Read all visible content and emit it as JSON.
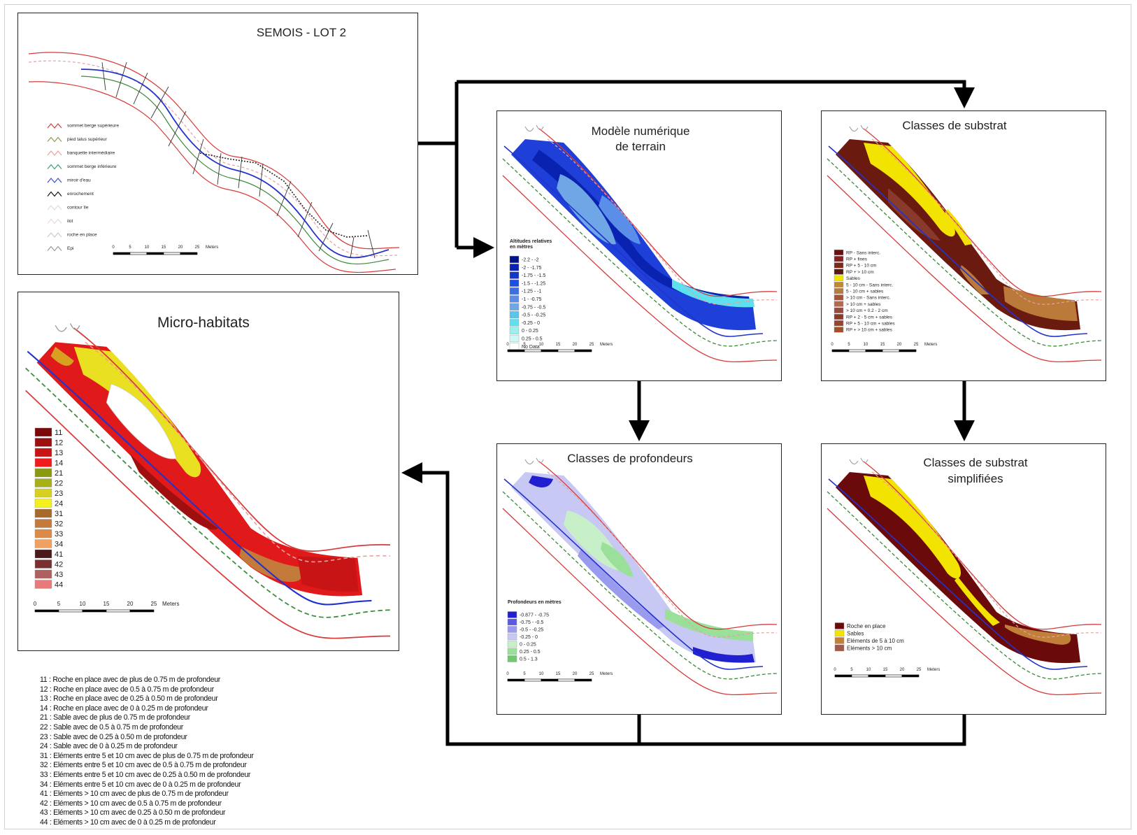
{
  "panels": {
    "lot": {
      "title": "SEMOIS - LOT 2",
      "legend": [
        {
          "label": "sommet berge supérieure",
          "color": "#d83a3a"
        },
        {
          "label": "pied talus supérieur",
          "color": "#8a9a4a"
        },
        {
          "label": "banquette intermédiaire",
          "color": "#e9a0a0"
        },
        {
          "label": "sommet berge inférieure",
          "color": "#3aa06a"
        },
        {
          "label": "miroir d'eau",
          "color": "#3b4fd0"
        },
        {
          "label": "enrochement",
          "color": "#111111"
        },
        {
          "label": "contour île",
          "color": "#dddddd"
        },
        {
          "label": "ilot",
          "color": "#e8d8e8"
        },
        {
          "label": "roche en place",
          "color": "#ffffff"
        },
        {
          "label": "Epi",
          "color": "#9a9a9a"
        }
      ],
      "scale": [
        "0",
        "5",
        "10",
        "15",
        "20",
        "25",
        "Meters"
      ]
    },
    "terrain": {
      "title": [
        "Modèle numérique",
        "de terrain"
      ],
      "legend_title": [
        "Altitudes relatives",
        "en mètres"
      ],
      "legend": [
        {
          "label": "-2.2 - -2",
          "color": "#00128a"
        },
        {
          "label": "-2 - -1.75",
          "color": "#0a22b0"
        },
        {
          "label": "-1.75 - -1.5",
          "color": "#1435cc"
        },
        {
          "label": "-1.5 - -1.25",
          "color": "#1f4fe0"
        },
        {
          "label": "-1.25 - -1",
          "color": "#3a6fe8"
        },
        {
          "label": "-1 - -0.75",
          "color": "#5a8ee8"
        },
        {
          "label": "-0.75 - -0.5",
          "color": "#6fa6e6"
        },
        {
          "label": "-0.5 - -0.25",
          "color": "#56c6ee"
        },
        {
          "label": "-0.25 - 0",
          "color": "#5ee0ee"
        },
        {
          "label": "0 - 0.25",
          "color": "#9af0f0"
        },
        {
          "label": "0.25 - 0.5",
          "color": "#cff8f4"
        },
        {
          "label": "No Data",
          "color": "#ffffff"
        }
      ],
      "scale": [
        "0",
        "5",
        "10",
        "15",
        "20",
        "25",
        "Meters"
      ]
    },
    "substrat": {
      "title": "Classes de substrat",
      "legend": [
        {
          "label": "RP - Sans interc.",
          "color": "#6b0f0f"
        },
        {
          "label": "RP + fines",
          "color": "#8a1f1f"
        },
        {
          "label": "RP + 5 - 10 cm",
          "color": "#7a2a1a"
        },
        {
          "label": "RP + > 10 cm",
          "color": "#5a1a10"
        },
        {
          "label": "Sables",
          "color": "#f2e400"
        },
        {
          "label": "5 - 10 cm - Sans interc.",
          "color": "#c8862a"
        },
        {
          "label": "5 - 10 cm + sables",
          "color": "#b97a3a"
        },
        {
          "label": "> 10 cm - Sans interc.",
          "color": "#a5543a"
        },
        {
          "label": "> 10 cm + sables",
          "color": "#b5694a"
        },
        {
          "label": "> 10 cm + 0.2 - 2 cm",
          "color": "#9a4a3a"
        },
        {
          "label": "RP + 2 - 5 cm + sables",
          "color": "#8a3a2a"
        },
        {
          "label": "RP + 5 - 10 cm + sables",
          "color": "#96452a"
        },
        {
          "label": "RP + > 10 cm + sables",
          "color": "#a0502a"
        }
      ],
      "scale": [
        "0",
        "5",
        "10",
        "15",
        "20",
        "25",
        "Meters"
      ]
    },
    "profondeurs": {
      "title": "Classes de profondeurs",
      "legend_title": "Profondeurs en mètres",
      "legend": [
        {
          "label": "-0.877 - -0.75",
          "color": "#2020d0"
        },
        {
          "label": "-0.75 - -0.5",
          "color": "#5a5ae0"
        },
        {
          "label": "-0.5 - -0.25",
          "color": "#9a9aee"
        },
        {
          "label": "-0.25 - 0",
          "color": "#c8c8f4"
        },
        {
          "label": "0 - 0.25",
          "color": "#c8f0c8"
        },
        {
          "label": "0.25 - 0.5",
          "color": "#9ae09a"
        },
        {
          "label": "0.5 - 1.3",
          "color": "#70c870"
        }
      ],
      "scale": [
        "0",
        "5",
        "10",
        "15",
        "20",
        "25",
        "Meters"
      ]
    },
    "simplifiees": {
      "title": [
        "Classes de substrat",
        "simplifiées"
      ],
      "legend": [
        {
          "label": "Roche en place",
          "color": "#6b0a0a"
        },
        {
          "label": "Sables",
          "color": "#f2e400"
        },
        {
          "label": "Eléments de 5 à 10 cm",
          "color": "#c0803a"
        },
        {
          "label": "Eléments > 10 cm",
          "color": "#a05a4a"
        }
      ],
      "scale": [
        "0",
        "5",
        "10",
        "15",
        "20",
        "25",
        "Meters"
      ]
    },
    "micro": {
      "title": "Micro-habitats",
      "legend": [
        {
          "label": "11",
          "color": "#7a0a0a"
        },
        {
          "label": "12",
          "color": "#a00f0f"
        },
        {
          "label": "13",
          "color": "#c81414"
        },
        {
          "label": "14",
          "color": "#ee1c1c"
        },
        {
          "label": "21",
          "color": "#8a9a10"
        },
        {
          "label": "22",
          "color": "#a8b018"
        },
        {
          "label": "23",
          "color": "#d8d020"
        },
        {
          "label": "24",
          "color": "#f4f020"
        },
        {
          "label": "31",
          "color": "#a86a2a"
        },
        {
          "label": "32",
          "color": "#c47a3a"
        },
        {
          "label": "33",
          "color": "#dc8a48"
        },
        {
          "label": "34",
          "color": "#f0a060"
        },
        {
          "label": "41",
          "color": "#4a1a1a"
        },
        {
          "label": "42",
          "color": "#7a3030"
        },
        {
          "label": "43",
          "color": "#b06060"
        },
        {
          "label": "44",
          "color": "#e87a7a"
        }
      ],
      "scale": [
        "0",
        "5",
        "10",
        "15",
        "20",
        "25",
        "Meters"
      ]
    }
  },
  "notes": [
    "11 : Roche en place avec de plus de 0.75 m de profondeur",
    "12 : Roche en place avec de 0.5 à 0.75 m de profondeur",
    "13 : Roche en place avec de 0.25 à 0.50 m de profondeur",
    "14 : Roche en place avec de 0 à 0.25 m de profondeur",
    "21 : Sable avec de plus de 0.75 m de profondeur",
    "22 : Sable avec de 0.5 à 0.75 m de profondeur",
    "23 : Sable avec de 0.25 à 0.50 m de profondeur",
    "24 : Sable avec de 0 à 0.25 m de profondeur",
    "31 : Eléments entre 5 et 10 cm avec de plus de 0.75 m de profondeur",
    "32 : Eléments entre 5 et 10 cm avec de 0.5 à 0.75 m de profondeur",
    "33 : Eléments entre 5 et 10 cm avec de 0.25 à 0.50 m de profondeur",
    "34 : Eléments entre 5 et 10 cm avec de 0 à 0.25 m de profondeur",
    "41 : Eléments > 10 cm avec de plus de 0.75 m de profondeur",
    "42 : Eléments > 10 cm avec de 0.5 à 0.75 m de profondeur",
    "43 : Eléments > 10 cm avec de 0.25 à 0.50 m de profondeur",
    "44 : Eléments > 10 cm avec de 0 à 0.25 m de profondeur"
  ]
}
